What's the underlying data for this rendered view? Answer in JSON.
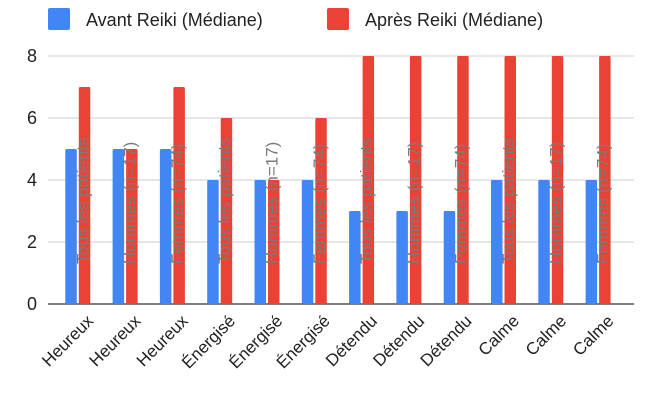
{
  "chart_data": {
    "type": "bar",
    "title": "",
    "xlabel": "",
    "ylabel": "",
    "ylim": [
      0,
      8
    ],
    "yticks": [
      0,
      2,
      4,
      6,
      8
    ],
    "grid": true,
    "legend_position": "top",
    "categories": [
      "Heureux",
      "Heureux",
      "Heureux",
      "Énergisé",
      "Énergisé",
      "Énergisé",
      "Détendu",
      "Détendu",
      "Détendu",
      "Calme",
      "Calme",
      "Calme"
    ],
    "annotations": [
      "Tous les patients",
      "Hommes (n=17)",
      "Femmes (n=74)",
      "Tous les patients",
      "Hommes (n=17)",
      "Femmes (n=74)",
      "Tous les patients",
      "Hommes (n=17)",
      "Femmes (n=74)",
      "Tous les patients",
      "Hommes (n=17)",
      "Femmes (n=74)"
    ],
    "series": [
      {
        "name": "Avant Reiki (Médiane)",
        "color": "#4285f4",
        "values": [
          5,
          5,
          5,
          4,
          4,
          4,
          3,
          3,
          3,
          4,
          4,
          4
        ]
      },
      {
        "name": "Après Reiki (Médiane)",
        "color": "#ea4335",
        "values": [
          7,
          5,
          7,
          6,
          4,
          6,
          8,
          8,
          8,
          8,
          8,
          8
        ]
      }
    ]
  }
}
